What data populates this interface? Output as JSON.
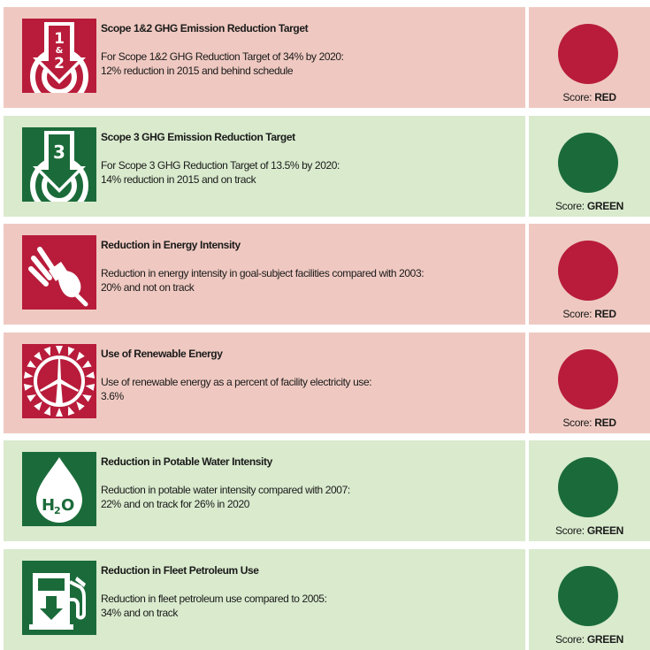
{
  "colors": {
    "red_bg": "#efc9c1",
    "green_bg": "#d9eacd",
    "red_accent": "#b81c3a",
    "green_accent": "#1b6b3a"
  },
  "score_prefix": "Score:",
  "items": [
    {
      "title": "Scope 1&2 GHG Emission Reduction Target",
      "desc_line1": "For Scope 1&2 GHG Reduction Target of 34% by 2020:",
      "desc_line2": "12% reduction in 2015 and behind schedule",
      "score": "RED",
      "icon": "scope12-target-icon",
      "icon_label_top": "1",
      "icon_label_mid": "&",
      "icon_label_bot": "2"
    },
    {
      "title": "Scope 3 GHG Emission Reduction Target",
      "desc_line1": "For Scope 3 GHG Reduction Target of 13.5% by 2020:",
      "desc_line2": "14% reduction in 2015 and on track",
      "score": "GREEN",
      "icon": "scope3-target-icon",
      "icon_label": "3"
    },
    {
      "title": "Reduction in Energy Intensity",
      "desc_line1": "Reduction in energy intensity in goal-subject facilities compared with 2003:",
      "desc_line2": "20% and not on track",
      "score": "RED",
      "icon": "cfl-bulb-icon"
    },
    {
      "title": "Use of Renewable Energy",
      "desc_line1": "Use of renewable energy as a percent of facility electricity use:",
      "desc_line2": "3.6%",
      "score": "RED",
      "icon": "wind-turbine-sun-icon"
    },
    {
      "title": "Reduction in Potable Water Intensity",
      "desc_line1": "Reduction in potable water intensity compared with 2007:",
      "desc_line2": "22% and on track for 26% in 2020",
      "score": "GREEN",
      "icon": "water-drop-h2o-icon",
      "icon_label_h": "H",
      "icon_label_sub": "2",
      "icon_label_o": "O"
    },
    {
      "title": "Reduction in Fleet Petroleum Use",
      "desc_line1": "Reduction in fleet petroleum use compared to 2005:",
      "desc_line2": "34% and on track",
      "score": "GREEN",
      "icon": "fuel-pump-icon"
    }
  ]
}
